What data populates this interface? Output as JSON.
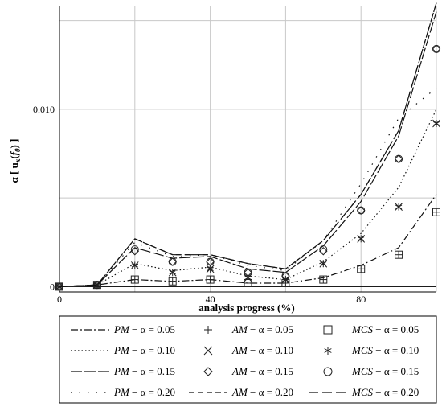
{
  "chart_data": {
    "type": "line",
    "xlabel": "analysis progress (%)",
    "ylabel_main": "α [ u",
    "ylabel_sub": "x",
    "ylabel_arg": "f",
    "ylabel_argsub": "0",
    "ylabel_end": ") ]",
    "xlim": [
      0,
      100
    ],
    "ylim": [
      -0.0003,
      0.0158
    ],
    "xticks": [
      0,
      40,
      80
    ],
    "xtick_labels": [
      "0",
      "40",
      "80"
    ],
    "yticks": [
      0,
      0.01
    ],
    "ytick_labels": [
      "0",
      "0.010"
    ],
    "xgrid": [
      0,
      20,
      40,
      60,
      80,
      100
    ],
    "ygrid": [
      0,
      0.005,
      0.01,
      0.015
    ],
    "grid": true,
    "x": [
      0,
      10,
      20,
      30,
      40,
      50,
      60,
      70,
      80,
      90,
      100
    ],
    "series": [
      {
        "name": "PM − α = 0.05",
        "method": "PM",
        "alpha": 0.05,
        "style": "dashdot",
        "values": [
          0,
          0.0001,
          0.0004,
          0.0003,
          0.0004,
          0.0002,
          0.0002,
          0.0005,
          0.0012,
          0.0022,
          0.0052
        ]
      },
      {
        "name": "PM − α = 0.10",
        "method": "PM",
        "alpha": 0.1,
        "style": "dotted",
        "values": [
          0,
          0.0001,
          0.0013,
          0.0009,
          0.0011,
          0.0006,
          0.0004,
          0.0014,
          0.003,
          0.0056,
          0.01
        ]
      },
      {
        "name": "PM − α = 0.15",
        "method": "PM",
        "alpha": 0.15,
        "style": "longdash",
        "values": [
          0,
          0.0001,
          0.0022,
          0.0016,
          0.0017,
          0.001,
          0.0008,
          0.0023,
          0.0048,
          0.0085,
          0.0155
        ]
      },
      {
        "name": "PM − α = 0.20",
        "method": "PM",
        "alpha": 0.2,
        "style": "sparsedot",
        "values": [
          0,
          0.0001,
          0.0025,
          0.0017,
          0.0018,
          0.0012,
          0.0009,
          0.0026,
          0.0058,
          0.0095,
          0.0112
        ]
      },
      {
        "name": "AM − α = 0.05",
        "method": "AM",
        "alpha": 0.05,
        "marker": "plus",
        "values": [
          0,
          0.0001,
          0.0004,
          0.0003,
          0.0004,
          0.0002,
          0.0002,
          0.0004,
          0.001,
          0.0018,
          0.0042
        ]
      },
      {
        "name": "AM − α = 0.10",
        "method": "AM",
        "alpha": 0.1,
        "marker": "cross",
        "values": [
          0,
          0.0001,
          0.0012,
          0.0008,
          0.001,
          0.0005,
          0.0004,
          0.0013,
          0.0027,
          0.0045,
          0.0092
        ]
      },
      {
        "name": "AM − α = 0.15",
        "method": "AM",
        "alpha": 0.15,
        "marker": "diamond",
        "values": [
          0,
          0.0001,
          0.002,
          0.0014,
          0.0014,
          0.0008,
          0.0006,
          0.002,
          0.0043,
          0.0072,
          0.0134
        ]
      },
      {
        "name": "AM − α = 0.20",
        "method": "AM",
        "alpha": 0.2,
        "style": "dashed",
        "values": [
          0,
          0.0001,
          0.0027,
          0.0018,
          0.0018,
          0.0013,
          0.001,
          0.0026,
          0.0052,
          0.0088,
          0.016
        ]
      },
      {
        "name": "MCS − α = 0.05",
        "method": "MCS",
        "alpha": 0.05,
        "marker": "square",
        "values": [
          0,
          0.0001,
          0.0004,
          0.0003,
          0.0004,
          0.0002,
          0.0002,
          0.0004,
          0.001,
          0.0018,
          0.0042
        ]
      },
      {
        "name": "MCS − α = 0.10",
        "method": "MCS",
        "alpha": 0.1,
        "marker": "star",
        "values": [
          0,
          0.0001,
          0.0012,
          0.0008,
          0.001,
          0.0005,
          0.0004,
          0.0013,
          0.0027,
          0.0045,
          0.0092
        ]
      },
      {
        "name": "MCS − α = 0.15",
        "method": "MCS",
        "alpha": 0.15,
        "marker": "circle",
        "values": [
          0,
          0.0001,
          0.0021,
          0.0014,
          0.0014,
          0.0008,
          0.0006,
          0.0021,
          0.0043,
          0.0072,
          0.0134
        ]
      },
      {
        "name": "MCS − α = 0.20",
        "method": "MCS",
        "alpha": 0.2,
        "style": "longdash2",
        "values": [
          0,
          0.0001,
          0.0027,
          0.0018,
          0.0018,
          0.0013,
          0.001,
          0.0026,
          0.0052,
          0.0088,
          0.016
        ]
      }
    ],
    "legend": {
      "placement": "bottom",
      "columns": [
        [
          {
            "method": "PM",
            "label": "α = 0.05",
            "sym": "dashdot"
          },
          {
            "method": "PM",
            "label": "α = 0.10",
            "sym": "dotted"
          },
          {
            "method": "PM",
            "label": "α = 0.15",
            "sym": "longdash"
          },
          {
            "method": "PM",
            "label": "α = 0.20",
            "sym": "sparsedot"
          }
        ],
        [
          {
            "method": "AM",
            "label": "α = 0.05",
            "sym": "plus"
          },
          {
            "method": "AM",
            "label": "α = 0.10",
            "sym": "cross"
          },
          {
            "method": "AM",
            "label": "α = 0.15",
            "sym": "diamond"
          },
          {
            "method": "AM",
            "label": "α = 0.20",
            "sym": "dashed"
          }
        ],
        [
          {
            "method": "MCS",
            "label": "α = 0.05",
            "sym": "square"
          },
          {
            "method": "MCS",
            "label": "α = 0.10",
            "sym": "star"
          },
          {
            "method": "MCS",
            "label": "α = 0.15",
            "sym": "circle"
          },
          {
            "method": "MCS",
            "label": "α = 0.20",
            "sym": "longdash2"
          }
        ]
      ],
      "separator": " − "
    }
  }
}
